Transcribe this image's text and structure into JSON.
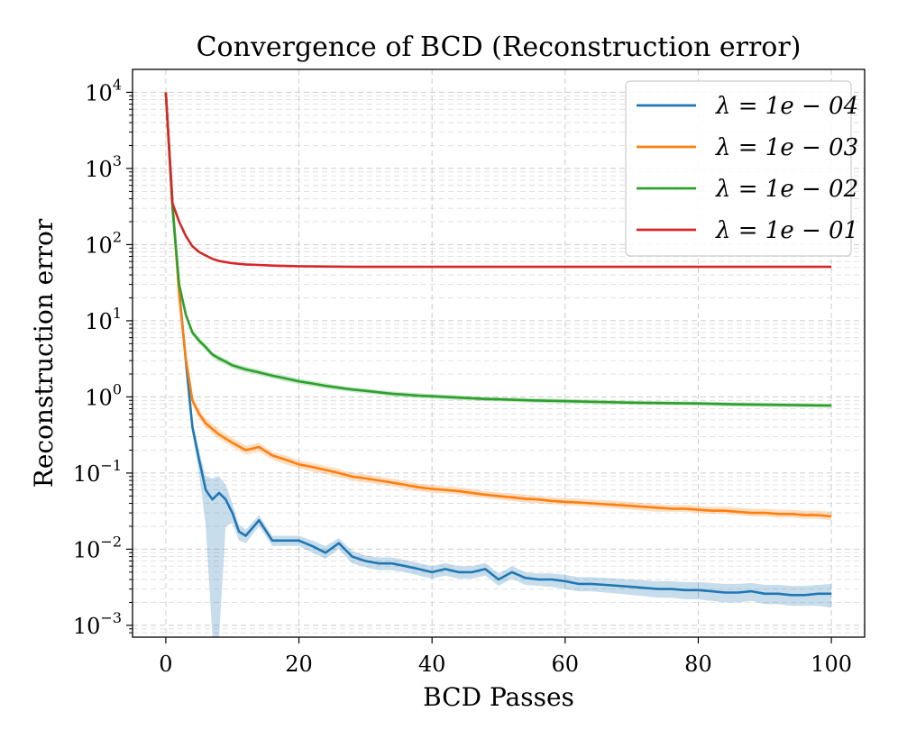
{
  "chart_data": {
    "type": "line",
    "title": "Convergence of BCD (Reconstruction error)",
    "xlabel": "BCD Passes",
    "ylabel": "Reconstruction error",
    "xlim": [
      -5,
      105
    ],
    "ylim": [
      0.0007,
      20000
    ],
    "yscale": "log",
    "grid": true,
    "legend_position": "top-right",
    "x_ticks": [
      0,
      20,
      40,
      60,
      80,
      100
    ],
    "x_tick_labels": [
      "0",
      "20",
      "40",
      "60",
      "80",
      "100"
    ],
    "y_ticks": [
      0.001,
      0.01,
      0.1,
      1,
      10,
      100,
      1000,
      10000
    ],
    "y_tick_labels": [
      {
        "base": "10",
        "exp": "−3"
      },
      {
        "base": "10",
        "exp": "−2"
      },
      {
        "base": "10",
        "exp": "−1"
      },
      {
        "base": "10",
        "exp": "0"
      },
      {
        "base": "10",
        "exp": "1"
      },
      {
        "base": "10",
        "exp": "2"
      },
      {
        "base": "10",
        "exp": "3"
      },
      {
        "base": "10",
        "exp": "4"
      }
    ],
    "series": [
      {
        "name": "λ = 1e − 04",
        "color": "#1f77b4",
        "x": [
          0,
          1,
          2,
          3,
          4,
          5,
          6,
          7,
          8,
          9,
          10,
          11,
          12,
          14,
          16,
          18,
          20,
          22,
          24,
          26,
          28,
          30,
          32,
          34,
          36,
          38,
          40,
          42,
          44,
          46,
          48,
          50,
          52,
          54,
          56,
          58,
          60,
          62,
          64,
          66,
          68,
          70,
          72,
          74,
          76,
          78,
          80,
          82,
          84,
          86,
          88,
          90,
          92,
          94,
          96,
          98,
          100
        ],
        "values": [
          10000,
          350,
          25,
          3,
          0.4,
          0.15,
          0.06,
          0.045,
          0.055,
          0.045,
          0.03,
          0.017,
          0.015,
          0.024,
          0.013,
          0.013,
          0.013,
          0.011,
          0.009,
          0.012,
          0.008,
          0.007,
          0.0065,
          0.0065,
          0.006,
          0.0055,
          0.005,
          0.0055,
          0.005,
          0.005,
          0.0055,
          0.004,
          0.005,
          0.0042,
          0.004,
          0.004,
          0.0038,
          0.0035,
          0.0035,
          0.0034,
          0.0033,
          0.0032,
          0.0031,
          0.003,
          0.003,
          0.0029,
          0.0029,
          0.0028,
          0.0027,
          0.0027,
          0.0028,
          0.0026,
          0.0026,
          0.0025,
          0.0025,
          0.0026,
          0.0026
        ],
        "band_low": [
          9500,
          320,
          22,
          2.5,
          0.32,
          0.1,
          0.02,
          0.0007,
          0.0007,
          0.02,
          0.022,
          0.013,
          0.012,
          0.02,
          0.011,
          0.011,
          0.011,
          0.009,
          0.0075,
          0.01,
          0.0065,
          0.0058,
          0.0053,
          0.0053,
          0.005,
          0.0045,
          0.0041,
          0.0045,
          0.0041,
          0.0041,
          0.0045,
          0.0033,
          0.0041,
          0.0034,
          0.0033,
          0.0032,
          0.003,
          0.0028,
          0.0028,
          0.0027,
          0.0026,
          0.0025,
          0.0024,
          0.0023,
          0.0023,
          0.0022,
          0.0022,
          0.0021,
          0.002,
          0.002,
          0.0021,
          0.0019,
          0.0019,
          0.0018,
          0.0018,
          0.0018,
          0.0017
        ],
        "band_high": [
          10500,
          380,
          28,
          3.6,
          0.5,
          0.2,
          0.09,
          0.085,
          0.09,
          0.07,
          0.04,
          0.021,
          0.018,
          0.028,
          0.015,
          0.015,
          0.015,
          0.013,
          0.011,
          0.014,
          0.0095,
          0.0083,
          0.0078,
          0.0078,
          0.0072,
          0.0066,
          0.006,
          0.0066,
          0.006,
          0.006,
          0.0066,
          0.0048,
          0.006,
          0.005,
          0.0048,
          0.0048,
          0.0046,
          0.0043,
          0.0043,
          0.0042,
          0.0041,
          0.004,
          0.0039,
          0.0038,
          0.0038,
          0.0037,
          0.0037,
          0.0036,
          0.0035,
          0.0035,
          0.0036,
          0.0034,
          0.0034,
          0.0033,
          0.0033,
          0.0034,
          0.0035
        ]
      },
      {
        "name": "λ = 1e − 03",
        "color": "#ff7f0e",
        "x": [
          0,
          1,
          2,
          3,
          4,
          5,
          6,
          8,
          10,
          12,
          14,
          16,
          18,
          20,
          22,
          24,
          26,
          28,
          30,
          32,
          34,
          36,
          38,
          40,
          42,
          44,
          46,
          48,
          50,
          52,
          54,
          56,
          58,
          60,
          62,
          64,
          66,
          68,
          70,
          72,
          74,
          76,
          78,
          80,
          82,
          84,
          86,
          88,
          90,
          92,
          94,
          96,
          98,
          100
        ],
        "values": [
          10000,
          350,
          22,
          3.2,
          0.9,
          0.6,
          0.45,
          0.32,
          0.25,
          0.2,
          0.22,
          0.17,
          0.15,
          0.13,
          0.12,
          0.11,
          0.1,
          0.09,
          0.085,
          0.08,
          0.075,
          0.07,
          0.065,
          0.062,
          0.06,
          0.058,
          0.055,
          0.052,
          0.05,
          0.048,
          0.046,
          0.045,
          0.043,
          0.042,
          0.041,
          0.04,
          0.039,
          0.038,
          0.037,
          0.036,
          0.035,
          0.034,
          0.034,
          0.033,
          0.032,
          0.032,
          0.031,
          0.03,
          0.03,
          0.029,
          0.029,
          0.028,
          0.028,
          0.027
        ],
        "band_low": [
          9500,
          330,
          20,
          2.8,
          0.78,
          0.52,
          0.39,
          0.28,
          0.22,
          0.175,
          0.19,
          0.15,
          0.13,
          0.115,
          0.105,
          0.097,
          0.088,
          0.08,
          0.075,
          0.071,
          0.067,
          0.062,
          0.058,
          0.055,
          0.054,
          0.052,
          0.049,
          0.047,
          0.045,
          0.043,
          0.041,
          0.04,
          0.039,
          0.038,
          0.037,
          0.036,
          0.035,
          0.034,
          0.033,
          0.032,
          0.031,
          0.031,
          0.031,
          0.03,
          0.029,
          0.029,
          0.028,
          0.027,
          0.027,
          0.026,
          0.026,
          0.025,
          0.025,
          0.024
        ],
        "band_high": [
          10500,
          370,
          24,
          3.6,
          1.02,
          0.69,
          0.52,
          0.37,
          0.29,
          0.23,
          0.25,
          0.19,
          0.17,
          0.147,
          0.136,
          0.124,
          0.113,
          0.101,
          0.096,
          0.09,
          0.084,
          0.079,
          0.073,
          0.07,
          0.067,
          0.065,
          0.062,
          0.058,
          0.056,
          0.054,
          0.052,
          0.05,
          0.048,
          0.047,
          0.046,
          0.045,
          0.044,
          0.043,
          0.042,
          0.04,
          0.039,
          0.038,
          0.038,
          0.037,
          0.036,
          0.036,
          0.035,
          0.034,
          0.034,
          0.033,
          0.033,
          0.032,
          0.032,
          0.031
        ]
      },
      {
        "name": "λ = 1e − 02",
        "color": "#2ca02c",
        "x": [
          0,
          1,
          2,
          3,
          4,
          5,
          6,
          7,
          8,
          9,
          10,
          12,
          14,
          16,
          18,
          20,
          22,
          24,
          26,
          28,
          30,
          32,
          34,
          36,
          38,
          40,
          42,
          44,
          46,
          48,
          50,
          55,
          60,
          65,
          70,
          75,
          80,
          85,
          90,
          95,
          100
        ],
        "values": [
          10000,
          300,
          30,
          12,
          7,
          5.5,
          4.5,
          3.6,
          3.2,
          2.9,
          2.6,
          2.3,
          2.1,
          1.9,
          1.75,
          1.6,
          1.5,
          1.4,
          1.32,
          1.25,
          1.2,
          1.15,
          1.1,
          1.07,
          1.04,
          1.02,
          1.0,
          0.98,
          0.96,
          0.94,
          0.93,
          0.9,
          0.88,
          0.86,
          0.84,
          0.83,
          0.82,
          0.8,
          0.79,
          0.78,
          0.77
        ],
        "band_low": [
          9500,
          285,
          28,
          11,
          6.4,
          5.0,
          4.1,
          3.3,
          2.9,
          2.65,
          2.38,
          2.1,
          1.93,
          1.75,
          1.6,
          1.47,
          1.38,
          1.29,
          1.22,
          1.16,
          1.11,
          1.07,
          1.02,
          0.99,
          0.96,
          0.95,
          0.93,
          0.91,
          0.9,
          0.88,
          0.87,
          0.84,
          0.82,
          0.8,
          0.79,
          0.78,
          0.77,
          0.75,
          0.74,
          0.73,
          0.72
        ],
        "band_high": [
          10500,
          315,
          32,
          13,
          7.6,
          6.0,
          4.9,
          3.9,
          3.5,
          3.15,
          2.82,
          2.5,
          2.27,
          2.05,
          1.9,
          1.73,
          1.62,
          1.51,
          1.42,
          1.34,
          1.29,
          1.23,
          1.18,
          1.15,
          1.12,
          1.09,
          1.07,
          1.05,
          1.02,
          1.0,
          0.99,
          0.96,
          0.94,
          0.92,
          0.89,
          0.88,
          0.87,
          0.85,
          0.84,
          0.83,
          0.82
        ]
      },
      {
        "name": "λ = 1e − 01",
        "color": "#d62728",
        "x": [
          0,
          1,
          2,
          3,
          4,
          5,
          6,
          7,
          8,
          9,
          10,
          12,
          14,
          16,
          18,
          20,
          25,
          30,
          40,
          50,
          60,
          70,
          80,
          90,
          100
        ],
        "values": [
          10000,
          350,
          200,
          130,
          95,
          80,
          72,
          65,
          61,
          59,
          57,
          55,
          54,
          53,
          52.5,
          52,
          51.5,
          51,
          51,
          51,
          51,
          51,
          51,
          51,
          51
        ],
        "band_low": [
          9900,
          345,
          196,
          127,
          93,
          78.5,
          70.5,
          64,
          60,
          58,
          56,
          54,
          53,
          52,
          51.5,
          51,
          50.5,
          50,
          50,
          50,
          50,
          50,
          50,
          50,
          50
        ],
        "band_high": [
          10100,
          355,
          204,
          133,
          97,
          81.5,
          73.5,
          66,
          62,
          60,
          58,
          56,
          55,
          54,
          53.5,
          53,
          52.5,
          52,
          52,
          52,
          52,
          52,
          52,
          52,
          52
        ]
      }
    ]
  }
}
